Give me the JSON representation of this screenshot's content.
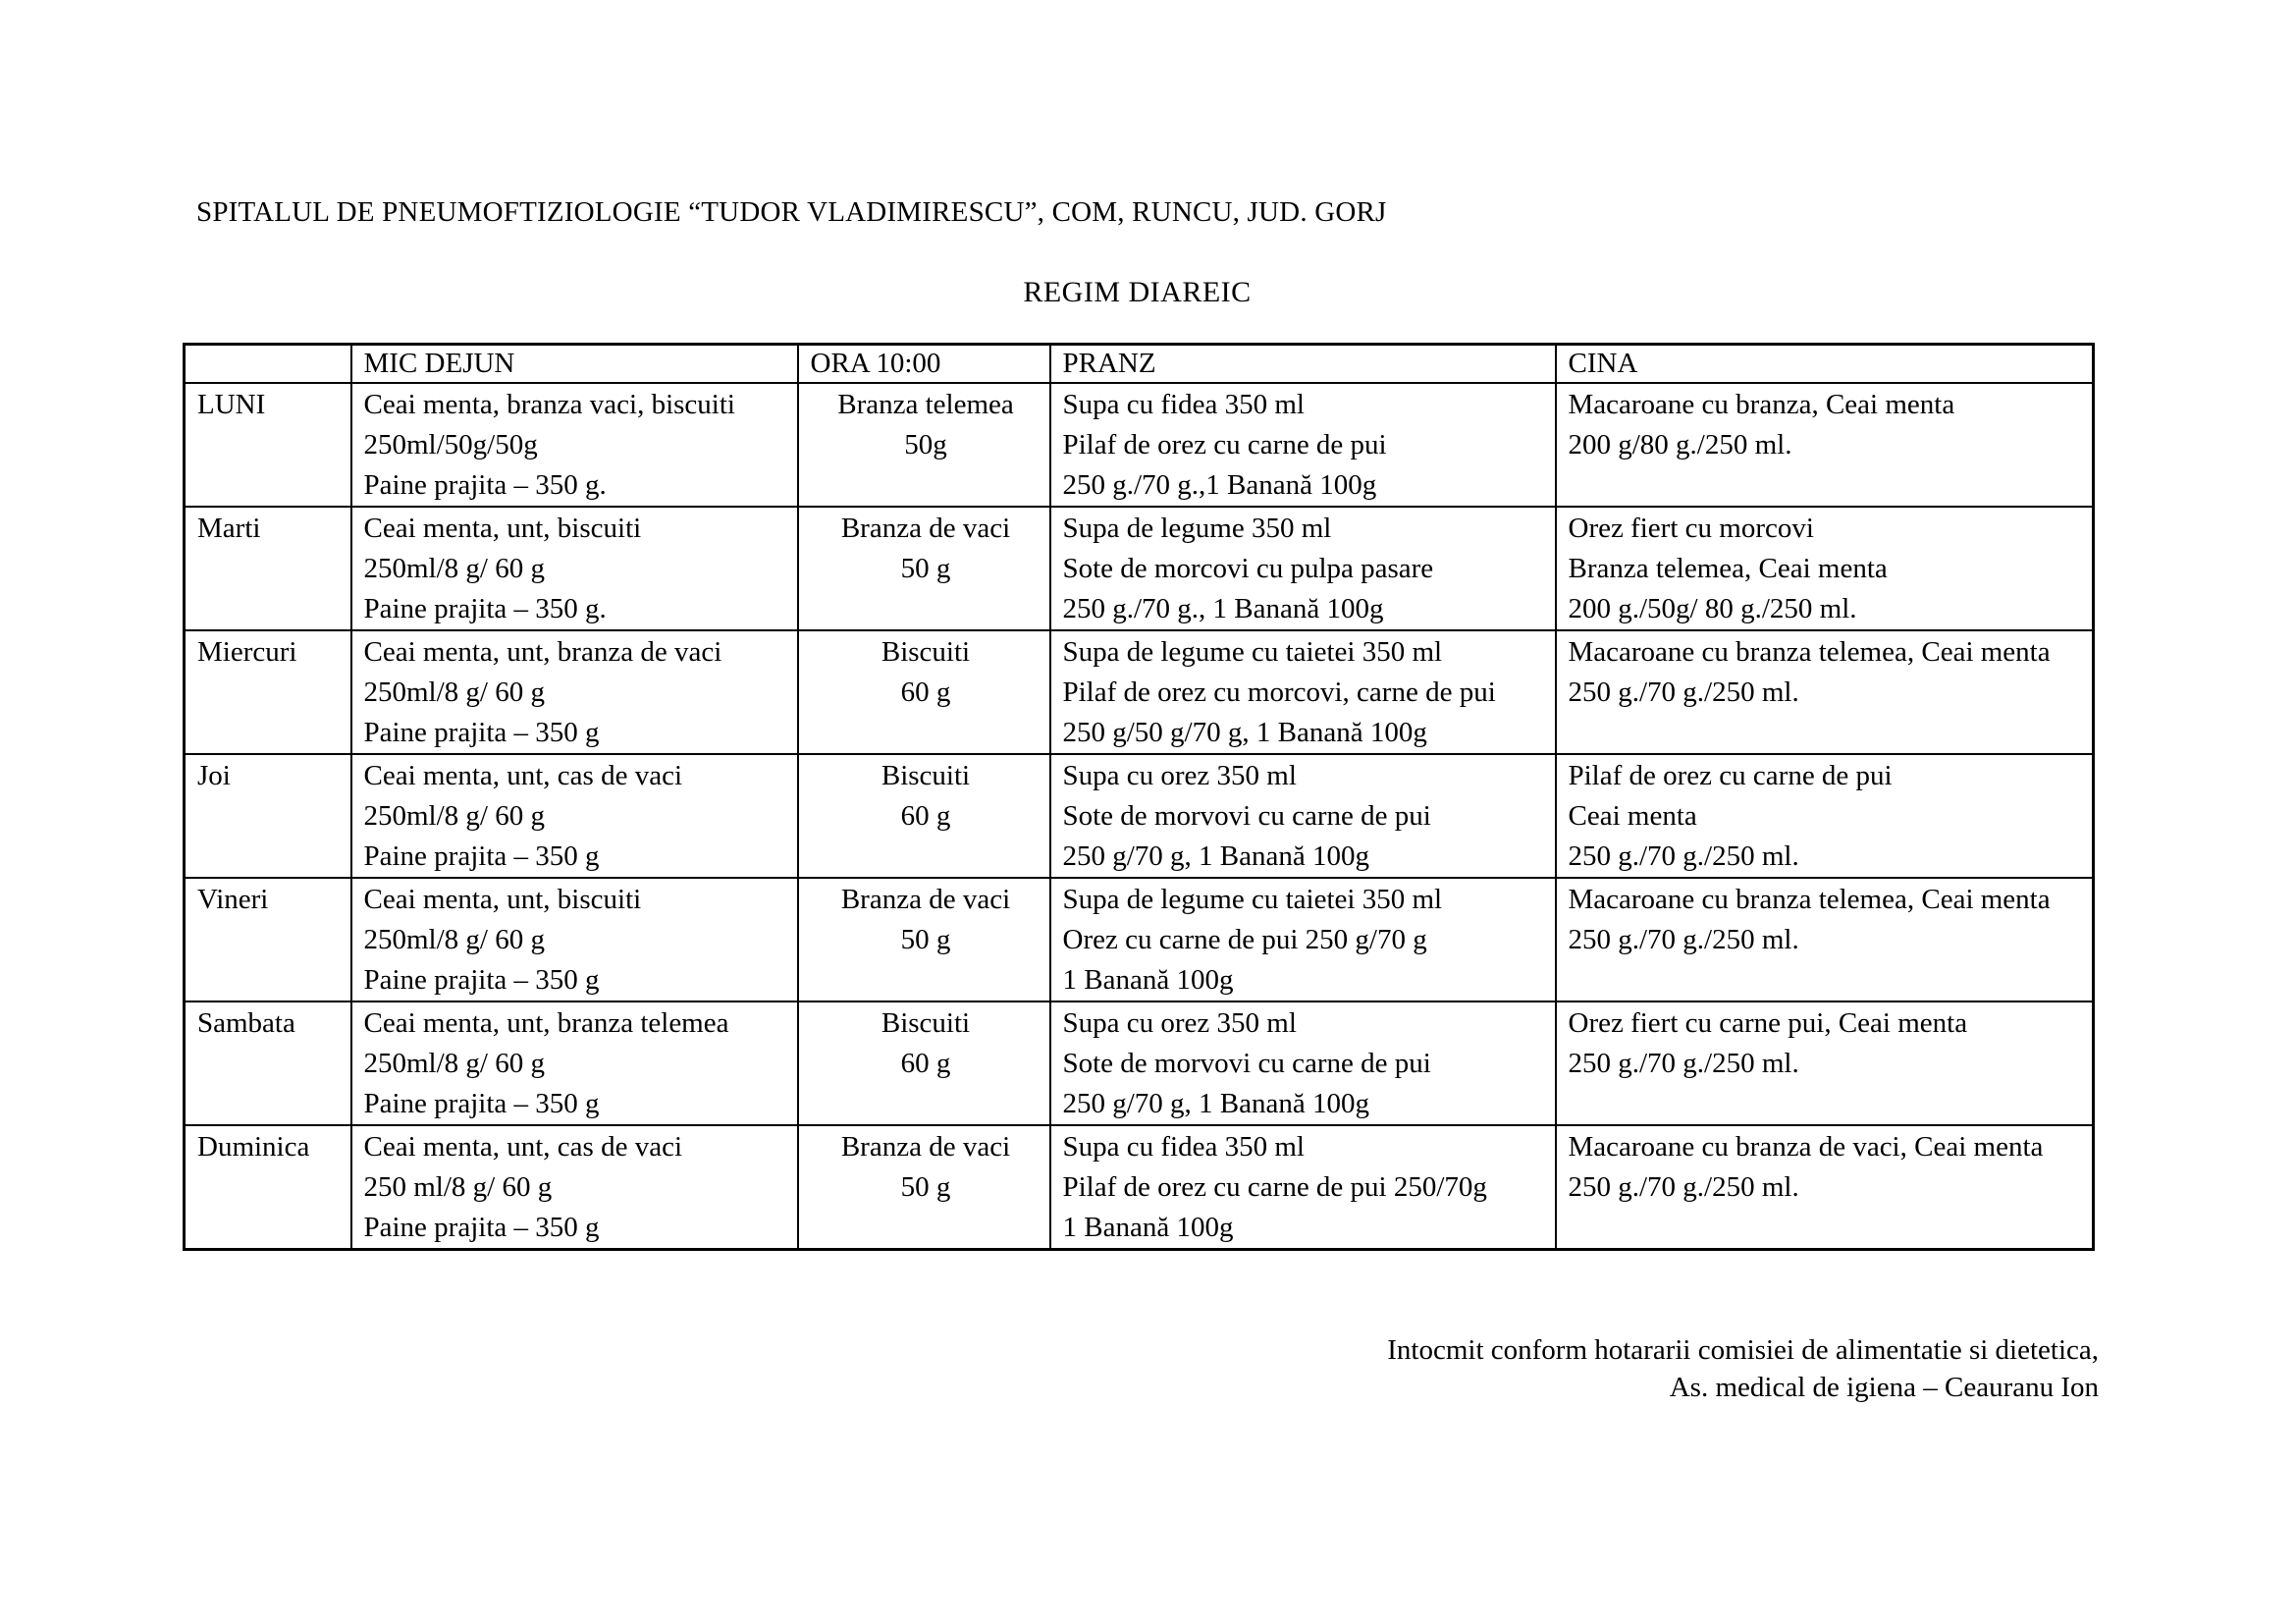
{
  "colors": {
    "background": "#ffffff",
    "text": "#000000",
    "table_border": "#000000"
  },
  "page": {
    "title": "SPITALUL DE PNEUMOFTIZIOLOGIE “TUDOR VLADIMIRESCU”, COM, RUNCU, JUD. GORJ",
    "subtitle": "REGIM DIAREIC",
    "footer_line1": "Intocmit conform hotararii comisiei de alimentatie si dietetica,",
    "footer_line2": "As. medical de igiena – Ceauranu Ion"
  },
  "table": {
    "headers": [
      "",
      "MIC DEJUN",
      "ORA 10:00",
      "PRANZ",
      "CINA"
    ],
    "rows": [
      {
        "day": "LUNI",
        "mic_dejun": [
          "Ceai menta, branza vaci, biscuiti",
          "250ml/50g/50g",
          "Paine prajita – 350 g."
        ],
        "ora_10": [
          "Branza telemea",
          "50g"
        ],
        "pranz": [
          "Supa cu fidea 350 ml",
          "Pilaf de orez cu carne de pui",
          "250 g./70 g.,1 Banană 100g"
        ],
        "cina": [
          "Macaroane cu branza, Ceai menta",
          "200 g/80 g./250 ml."
        ]
      },
      {
        "day": "Marti",
        "mic_dejun": [
          "Ceai menta, unt, biscuiti",
          "250ml/8 g/ 60 g",
          "Paine prajita – 350 g."
        ],
        "ora_10": [
          "Branza de vaci",
          "50 g"
        ],
        "pranz": [
          "Supa de legume 350 ml",
          "Sote de morcovi cu pulpa pasare",
          "250 g./70 g., 1 Banană 100g"
        ],
        "cina": [
          "Orez fiert cu morcovi",
          "Branza telemea, Ceai menta",
          "200 g./50g/ 80 g./250 ml."
        ]
      },
      {
        "day": "Miercuri",
        "mic_dejun": [
          "Ceai menta, unt, branza de vaci",
          "250ml/8 g/ 60 g",
          "Paine prajita – 350 g"
        ],
        "ora_10": [
          "Biscuiti",
          "60 g"
        ],
        "pranz": [
          "Supa de legume cu taietei 350 ml",
          "Pilaf de orez cu morcovi, carne de pui",
          "250 g/50 g/70 g, 1 Banană 100g"
        ],
        "cina": [
          "Macaroane cu branza telemea, Ceai menta",
          "250 g./70 g./250 ml."
        ]
      },
      {
        "day": "Joi",
        "mic_dejun": [
          "Ceai menta, unt, cas de vaci",
          "250ml/8 g/ 60 g",
          "Paine prajita – 350 g"
        ],
        "ora_10": [
          "Biscuiti",
          "60 g"
        ],
        "pranz": [
          "Supa cu orez 350 ml",
          "Sote de morvovi cu carne de pui",
          "250 g/70 g, 1 Banană 100g"
        ],
        "cina": [
          "Pilaf de orez cu carne de pui",
          "Ceai menta",
          "250 g./70 g./250 ml."
        ]
      },
      {
        "day": "Vineri",
        "mic_dejun": [
          "Ceai menta, unt, biscuiti",
          "250ml/8 g/ 60 g",
          "Paine prajita – 350 g"
        ],
        "ora_10": [
          "Branza de vaci",
          "50 g"
        ],
        "pranz": [
          "Supa de legume cu taietei 350 ml",
          "Orez cu carne de pui 250 g/70 g",
          "1 Banană 100g"
        ],
        "cina": [
          "Macaroane cu branza telemea, Ceai menta",
          "250 g./70 g./250 ml."
        ]
      },
      {
        "day": "Sambata",
        "mic_dejun": [
          "Ceai menta, unt, branza telemea",
          "250ml/8 g/ 60 g",
          "Paine prajita – 350 g"
        ],
        "ora_10": [
          "Biscuiti",
          "60 g"
        ],
        "pranz": [
          "Supa cu orez 350 ml",
          "Sote de morvovi cu carne de pui",
          "250 g/70 g, 1 Banană 100g"
        ],
        "cina": [
          "Orez fiert cu carne pui, Ceai menta",
          "250 g./70 g./250 ml."
        ]
      },
      {
        "day": "Duminica",
        "mic_dejun": [
          "Ceai menta, unt, cas de vaci",
          "250 ml/8 g/ 60 g",
          "Paine prajita – 350 g"
        ],
        "ora_10": [
          "Branza de vaci",
          "50 g"
        ],
        "pranz": [
          "Supa cu fidea 350 ml",
          "Pilaf de orez cu carne de pui 250/70g",
          "1 Banană 100g"
        ],
        "cina": [
          "Macaroane cu branza de vaci, Ceai menta",
          "250 g./70 g./250 ml."
        ]
      }
    ]
  }
}
